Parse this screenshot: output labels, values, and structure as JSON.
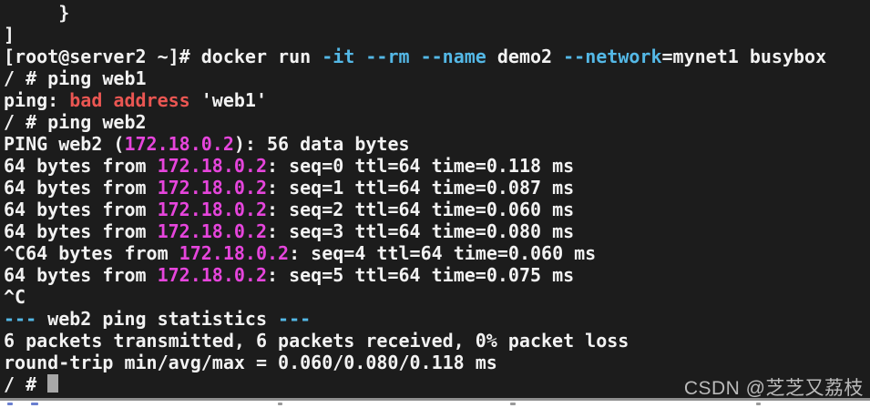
{
  "colors": {
    "background": "#1c1c1c",
    "fg": "#f2f2f2",
    "cyan": "#54b8e6",
    "magenta": "#e645dc",
    "red": "#ea5652",
    "cursor": "#a8a8a8",
    "watermark": "#bababa",
    "divider": "#909090"
  },
  "watermark": {
    "text": "CSDN @芝芝又荔枝"
  },
  "terminal": {
    "lines": [
      {
        "segments": [
          {
            "text": "     }",
            "color": "fg"
          }
        ]
      },
      {
        "segments": [
          {
            "text": "]",
            "color": "fg"
          }
        ]
      },
      {
        "segments": [
          {
            "text": "[root@server2 ~]# docker run ",
            "color": "fg"
          },
          {
            "text": "-it",
            "color": "cyan"
          },
          {
            "text": " ",
            "color": "fg"
          },
          {
            "text": "--rm",
            "color": "cyan"
          },
          {
            "text": " ",
            "color": "fg"
          },
          {
            "text": "--name",
            "color": "cyan"
          },
          {
            "text": " demo2 ",
            "color": "fg"
          },
          {
            "text": "--network",
            "color": "cyan"
          },
          {
            "text": "=mynet1 busybox",
            "color": "fg"
          }
        ]
      },
      {
        "segments": [
          {
            "text": "/ # ping web1",
            "color": "fg"
          }
        ]
      },
      {
        "segments": [
          {
            "text": "ping: ",
            "color": "fg"
          },
          {
            "text": "bad address",
            "color": "red"
          },
          {
            "text": " 'web1'",
            "color": "fg"
          }
        ]
      },
      {
        "segments": [
          {
            "text": "/ # ping web2",
            "color": "fg"
          }
        ]
      },
      {
        "segments": [
          {
            "text": "PING web2 (",
            "color": "fg"
          },
          {
            "text": "172.18.0.2",
            "color": "magenta"
          },
          {
            "text": "): 56 data bytes",
            "color": "fg"
          }
        ]
      },
      {
        "segments": [
          {
            "text": "64 bytes from ",
            "color": "fg"
          },
          {
            "text": "172.18.0.2",
            "color": "magenta"
          },
          {
            "text": ": seq=0 ttl=64 time=0.118 ms",
            "color": "fg"
          }
        ]
      },
      {
        "segments": [
          {
            "text": "64 bytes from ",
            "color": "fg"
          },
          {
            "text": "172.18.0.2",
            "color": "magenta"
          },
          {
            "text": ": seq=1 ttl=64 time=0.087 ms",
            "color": "fg"
          }
        ]
      },
      {
        "segments": [
          {
            "text": "64 bytes from ",
            "color": "fg"
          },
          {
            "text": "172.18.0.2",
            "color": "magenta"
          },
          {
            "text": ": seq=2 ttl=64 time=0.060 ms",
            "color": "fg"
          }
        ]
      },
      {
        "segments": [
          {
            "text": "64 bytes from ",
            "color": "fg"
          },
          {
            "text": "172.18.0.2",
            "color": "magenta"
          },
          {
            "text": ": seq=3 ttl=64 time=0.080 ms",
            "color": "fg"
          }
        ]
      },
      {
        "segments": [
          {
            "text": "^C64 bytes from ",
            "color": "fg"
          },
          {
            "text": "172.18.0.2",
            "color": "magenta"
          },
          {
            "text": ": seq=4 ttl=64 time=0.060 ms",
            "color": "fg"
          }
        ]
      },
      {
        "segments": [
          {
            "text": "64 bytes from ",
            "color": "fg"
          },
          {
            "text": "172.18.0.2",
            "color": "magenta"
          },
          {
            "text": ": seq=5 ttl=64 time=0.075 ms",
            "color": "fg"
          }
        ]
      },
      {
        "segments": [
          {
            "text": "^C",
            "color": "fg"
          }
        ]
      },
      {
        "segments": [
          {
            "text": "--- ",
            "color": "cyan"
          },
          {
            "text": "web2 ping statistics",
            "color": "fg"
          },
          {
            "text": " ---",
            "color": "cyan"
          }
        ]
      },
      {
        "segments": [
          {
            "text": "6 packets transmitted, 6 packets received, 0% packet loss",
            "color": "fg"
          }
        ]
      },
      {
        "segments": [
          {
            "text": "round-trip min/avg/max = 0.060/0.080/0.118 ms",
            "color": "fg"
          }
        ]
      },
      {
        "segments": [
          {
            "text": "/ # ",
            "color": "fg"
          }
        ],
        "cursor": true
      }
    ]
  }
}
